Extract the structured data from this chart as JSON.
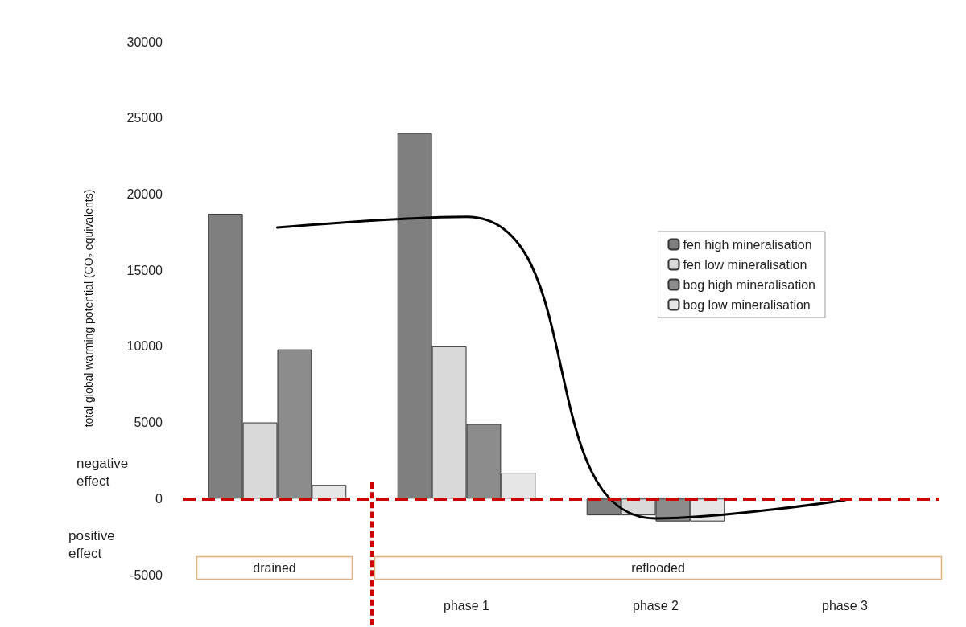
{
  "chart_data": {
    "type": "bar",
    "ylabel": "total global warming potential (CO₂ equivalents)",
    "categories": [
      null,
      "phase 1",
      "phase 2",
      "phase 3"
    ],
    "series": [
      {
        "name": "fen high mineralisation",
        "color": "#7f7f7f",
        "values": [
          18700,
          24000,
          -1100,
          null
        ]
      },
      {
        "name": "fen low mineralisation",
        "color": "#d9d9d9",
        "values": [
          5000,
          10000,
          -1100,
          null
        ]
      },
      {
        "name": "bog high mineralisation",
        "color": "#8c8c8c",
        "values": [
          9800,
          4900,
          -1500,
          null
        ]
      },
      {
        "name": "bog low mineralisation",
        "color": "#e6e6e6",
        "values": [
          900,
          1700,
          -1500,
          null
        ]
      },
      {
        "type": "line",
        "color": "#000000",
        "values": [
          17800,
          18500,
          -1300,
          -100
        ]
      }
    ],
    "ylim": [
      -5000,
      30000
    ],
    "yticks": [
      -5000,
      0,
      5000,
      10000,
      15000,
      20000,
      25000,
      30000
    ],
    "ref_lines": [
      {
        "axis": "y",
        "value": 0,
        "label": null,
        "color": "#cc0000",
        "line_style": "dashed"
      }
    ],
    "annotations": [
      "negative effect",
      "positive effect",
      "drained",
      "reflooded"
    ],
    "legend": "top right",
    "grid": false,
    "marker": "none"
  }
}
